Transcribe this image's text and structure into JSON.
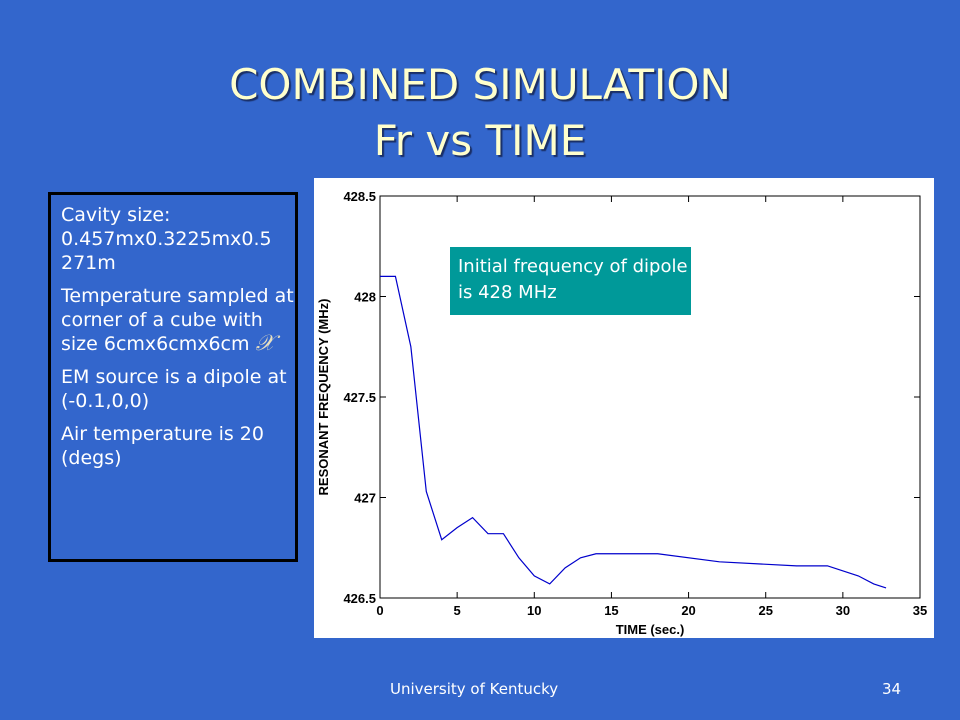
{
  "slide": {
    "title_line1": "COMBINED SIMULATION",
    "title_line2": "Fr vs TIME",
    "info": {
      "p1": "Cavity size: 0.457mx0.3225mx0.5 271m",
      "p2": "Temperature sampled at corner of a cube with size 6cmx6cmx6cm",
      "p3": "EM source is a dipole at (-0.1,0,0)",
      "p4": "Air temperature is 20 (degs)"
    },
    "callout": "Initial frequency of dipole is 428 MHz",
    "footer_left": "University of Kentucky",
    "footer_right": "34",
    "colors": {
      "background": "#3366cc",
      "title": "#ffffcc",
      "callout": "#009999",
      "line": "#0000cc"
    }
  },
  "chart_data": {
    "type": "line",
    "xlabel": "TIME (sec.)",
    "ylabel": "RESONANT FREQUENCY (MHz)",
    "xlim": [
      0,
      35
    ],
    "ylim": [
      426.5,
      428.5
    ],
    "xticks": [
      0,
      5,
      10,
      15,
      20,
      25,
      30,
      35
    ],
    "yticks": [
      426.5,
      427,
      427.5,
      428,
      428.5
    ],
    "xtick_labels": [
      "0",
      "5",
      "10",
      "15",
      "20",
      "25",
      "30",
      "35"
    ],
    "ytick_labels": [
      "426.5",
      "427",
      "427.5",
      "428",
      "428.5"
    ],
    "grid": false,
    "series": [
      {
        "x": [
          1,
          2,
          3,
          4,
          5,
          6,
          7,
          8,
          9,
          10,
          11,
          12,
          13,
          14,
          15,
          18,
          22,
          27,
          29,
          31,
          32,
          32.8
        ],
        "y": [
          428.1,
          427.75,
          427.03,
          426.79,
          426.85,
          426.9,
          426.82,
          426.82,
          426.7,
          426.61,
          426.57,
          426.65,
          426.7,
          426.72,
          426.72,
          426.72,
          426.68,
          426.66,
          426.66,
          426.61,
          426.57,
          426.55
        ],
        "pre": {
          "x": [
            0,
            1
          ],
          "y": [
            428.1,
            428.1
          ]
        }
      }
    ]
  }
}
